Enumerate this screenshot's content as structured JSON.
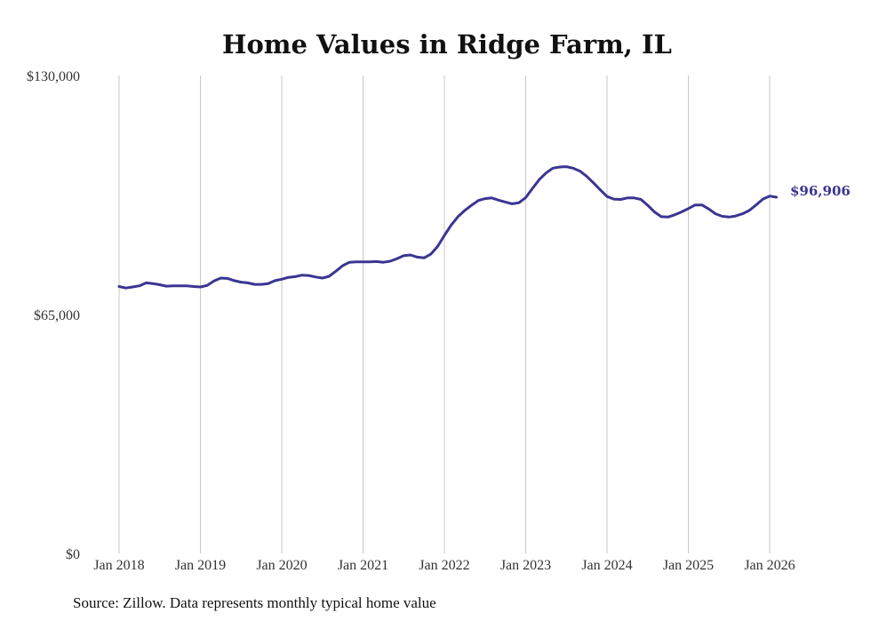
{
  "chart_data": {
    "type": "line",
    "title": "Home Values in Ridge Farm, IL",
    "source": "Source: Zillow. Data represents monthly typical home value",
    "xlabel": "",
    "ylabel": "",
    "ylim": [
      0,
      130000
    ],
    "y_ticks": [
      {
        "value": 0,
        "label": "$0"
      },
      {
        "value": 65000,
        "label": "$65,000"
      },
      {
        "value": 130000,
        "label": "$130,000"
      }
    ],
    "x_ticks": [
      {
        "value": 2018,
        "label": "Jan 2018"
      },
      {
        "value": 2019,
        "label": "Jan 2019"
      },
      {
        "value": 2020,
        "label": "Jan 2020"
      },
      {
        "value": 2021,
        "label": "Jan 2021"
      },
      {
        "value": 2022,
        "label": "Jan 2022"
      },
      {
        "value": 2023,
        "label": "Jan 2023"
      },
      {
        "value": 2024,
        "label": "Jan 2024"
      },
      {
        "value": 2025,
        "label": "Jan 2025"
      },
      {
        "value": 2026,
        "label": "Jan 2026"
      }
    ],
    "xlim": [
      2018,
      2026
    ],
    "vertical_grid": true,
    "end_label": "$96,906",
    "colors": {
      "line": "#3b3592",
      "grid": "#c8c8c8"
    },
    "series": [
      {
        "name": "Typical home value",
        "x": [
          2018.0,
          2018.083,
          2018.167,
          2018.25,
          2018.333,
          2018.417,
          2018.5,
          2018.583,
          2018.667,
          2018.75,
          2018.833,
          2018.917,
          2019.0,
          2019.083,
          2019.167,
          2019.25,
          2019.333,
          2019.417,
          2019.5,
          2019.583,
          2019.667,
          2019.75,
          2019.833,
          2019.917,
          2020.0,
          2020.083,
          2020.167,
          2020.25,
          2020.333,
          2020.417,
          2020.5,
          2020.583,
          2020.667,
          2020.75,
          2020.833,
          2020.917,
          2021.0,
          2021.083,
          2021.167,
          2021.25,
          2021.333,
          2021.417,
          2021.5,
          2021.583,
          2021.667,
          2021.75,
          2021.833,
          2021.917,
          2022.0,
          2022.083,
          2022.167,
          2022.25,
          2022.333,
          2022.417,
          2022.5,
          2022.583,
          2022.667,
          2022.75,
          2022.833,
          2022.917,
          2023.0,
          2023.083,
          2023.167,
          2023.25,
          2023.333,
          2023.417,
          2023.5,
          2023.583,
          2023.667,
          2023.75,
          2023.833,
          2023.917,
          2024.0,
          2024.083,
          2024.167,
          2024.25,
          2024.333,
          2024.417,
          2024.5,
          2024.583,
          2024.667,
          2024.75,
          2024.833,
          2024.917,
          2025.0,
          2025.083,
          2025.167,
          2025.25,
          2025.333,
          2025.417,
          2025.5,
          2025.583,
          2025.667,
          2025.75,
          2025.833,
          2025.917,
          2026.0,
          2026.083
        ],
        "values": [
          72600,
          72200,
          72500,
          72800,
          73600,
          73400,
          73100,
          72700,
          72800,
          72800,
          72800,
          72600,
          72500,
          72900,
          74100,
          74900,
          74800,
          74200,
          73800,
          73600,
          73200,
          73200,
          73400,
          74200,
          74600,
          75100,
          75300,
          75700,
          75600,
          75200,
          74900,
          75400,
          76800,
          78300,
          79200,
          79300,
          79300,
          79300,
          79400,
          79200,
          79500,
          80200,
          81000,
          81200,
          80600,
          80400,
          81400,
          83500,
          86500,
          89300,
          91600,
          93300,
          94700,
          96000,
          96500,
          96700,
          96100,
          95600,
          95100,
          95400,
          96800,
          99300,
          101700,
          103500,
          104800,
          105100,
          105200,
          104800,
          104000,
          102600,
          100800,
          98900,
          97100,
          96400,
          96300,
          96700,
          96700,
          96300,
          94700,
          92900,
          91600,
          91500,
          92100,
          92900,
          93800,
          94800,
          94800,
          93700,
          92400,
          91700,
          91500,
          91800,
          92400,
          93300,
          94800,
          96400,
          97200,
          96906
        ]
      }
    ]
  }
}
